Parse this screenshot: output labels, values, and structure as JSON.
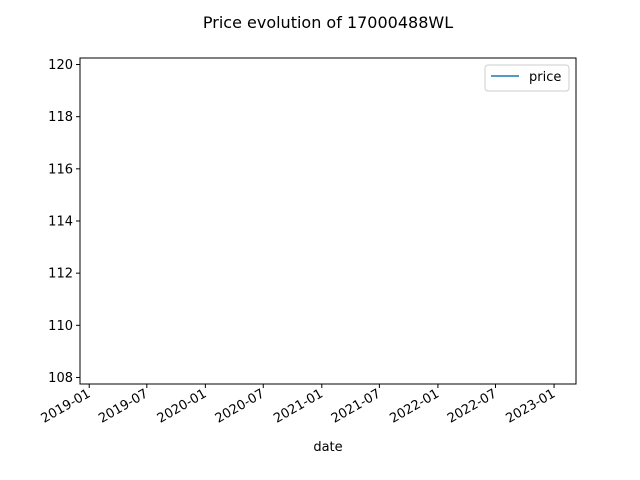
{
  "chart_data": {
    "type": "line",
    "title": "Price evolution of 17000488WL",
    "xlabel": "date",
    "ylabel": "",
    "x_ticks": [
      "2019-01",
      "2019-07",
      "2020-01",
      "2020-07",
      "2021-01",
      "2021-07",
      "2022-01",
      "2022-07",
      "2023-01"
    ],
    "y_ticks": [
      108,
      110,
      112,
      114,
      116,
      118,
      120
    ],
    "ylim": [
      107.75,
      120.25
    ],
    "xlim": [
      "2018-12-03",
      "2023-03-11"
    ],
    "grid": false,
    "legend": "top-right",
    "series": [
      {
        "name": "price",
        "color": "#1f77b4",
        "x": [],
        "y": []
      }
    ]
  }
}
